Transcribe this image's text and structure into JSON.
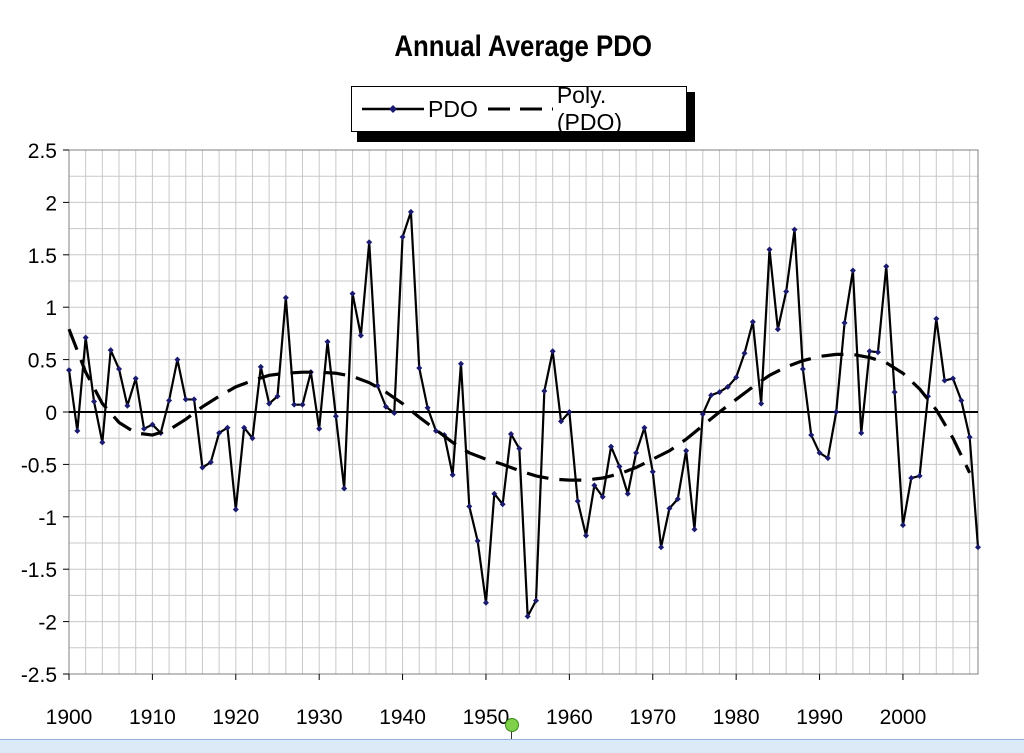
{
  "chart_data": {
    "type": "line",
    "title": "Annual Average PDO",
    "xlabel": "",
    "ylabel": "",
    "xlim": [
      1900,
      2009
    ],
    "ylim": [
      -2.5,
      2.5
    ],
    "x_ticks": [
      1900,
      1910,
      1920,
      1930,
      1940,
      1950,
      1960,
      1970,
      1980,
      1990,
      2000
    ],
    "x_tick_labels": [
      "1900",
      "1910",
      "1920",
      "1930",
      "1940",
      "1950",
      "1960",
      "1970",
      "1980",
      "1990",
      "2000"
    ],
    "y_ticks": [
      2.5,
      2,
      1.5,
      1,
      0.5,
      0,
      -0.5,
      -1,
      -1.5,
      -2,
      -2.5
    ],
    "y_tick_labels": [
      "2.5",
      "2",
      "1.5",
      "1",
      "0.5",
      "0",
      "-0.5",
      "-1",
      "-1.5",
      "-2",
      "-2.5"
    ],
    "grid": true,
    "legend_position": "top-center",
    "series": [
      {
        "name": "PDO",
        "style": "solid line with diamond markers",
        "color": "#000000",
        "marker_color": "#1a1a6e",
        "x_start": 1900,
        "x_step": 1,
        "values": [
          0.4,
          -0.18,
          0.71,
          0.1,
          -0.29,
          0.59,
          0.41,
          0.06,
          0.32,
          -0.16,
          -0.12,
          -0.2,
          0.11,
          0.5,
          0.12,
          0.12,
          -0.53,
          -0.48,
          -0.2,
          -0.15,
          -0.93,
          -0.15,
          -0.25,
          0.43,
          0.08,
          0.15,
          1.09,
          0.07,
          0.07,
          0.38,
          -0.16,
          0.67,
          -0.04,
          -0.73,
          1.13,
          0.73,
          1.62,
          0.25,
          0.05,
          -0.01,
          1.67,
          1.91,
          0.42,
          0.04,
          -0.18,
          -0.22,
          -0.6,
          0.46,
          -0.9,
          -1.23,
          -1.82,
          -0.78,
          -0.88,
          -0.21,
          -0.35,
          -1.95,
          -1.8,
          0.2,
          0.58,
          -0.09,
          0.0,
          -0.85,
          -1.18,
          -0.7,
          -0.81,
          -0.33,
          -0.52,
          -0.78,
          -0.39,
          -0.15,
          -0.57,
          -1.29,
          -0.92,
          -0.83,
          -0.37,
          -1.12,
          -0.02,
          0.16,
          0.19,
          0.24,
          0.33,
          0.56,
          0.86,
          0.08,
          1.55,
          0.79,
          1.15,
          1.74,
          0.41,
          -0.22,
          -0.39,
          -0.44,
          0.0,
          0.85,
          1.35,
          -0.2,
          0.58,
          0.57,
          1.39,
          0.19,
          -1.08,
          -0.63,
          -0.61,
          0.15,
          0.89,
          0.3,
          0.32,
          0.11,
          -0.24,
          -1.29
        ]
      },
      {
        "name": "Poly. (PDO)",
        "style": "dashed polynomial trendline",
        "color": "#000000",
        "x": [
          1900,
          1902,
          1904,
          1906,
          1908,
          1910,
          1912,
          1914,
          1916,
          1918,
          1920,
          1922,
          1924,
          1926,
          1928,
          1930,
          1932,
          1934,
          1936,
          1938,
          1940,
          1942,
          1944,
          1946,
          1948,
          1950,
          1952,
          1954,
          1956,
          1958,
          1960,
          1962,
          1964,
          1966,
          1968,
          1970,
          1972,
          1974,
          1976,
          1978,
          1980,
          1982,
          1984,
          1986,
          1988,
          1990,
          1992,
          1994,
          1996,
          1998,
          2000,
          2002,
          2004,
          2006,
          2008
        ],
        "values": [
          0.79,
          0.38,
          0.08,
          -0.1,
          -0.2,
          -0.22,
          -0.17,
          -0.07,
          0.05,
          0.15,
          0.24,
          0.3,
          0.35,
          0.37,
          0.38,
          0.38,
          0.37,
          0.34,
          0.28,
          0.19,
          0.08,
          -0.05,
          -0.17,
          -0.29,
          -0.39,
          -0.45,
          -0.5,
          -0.56,
          -0.61,
          -0.64,
          -0.65,
          -0.65,
          -0.63,
          -0.59,
          -0.53,
          -0.45,
          -0.37,
          -0.26,
          -0.13,
          0.0,
          0.12,
          0.24,
          0.35,
          0.43,
          0.49,
          0.53,
          0.55,
          0.55,
          0.52,
          0.47,
          0.37,
          0.22,
          0.02,
          -0.25,
          -0.58
        ]
      }
    ]
  },
  "legend": {
    "pdo_label": "PDO",
    "poly_label": "Poly. (PDO)"
  }
}
